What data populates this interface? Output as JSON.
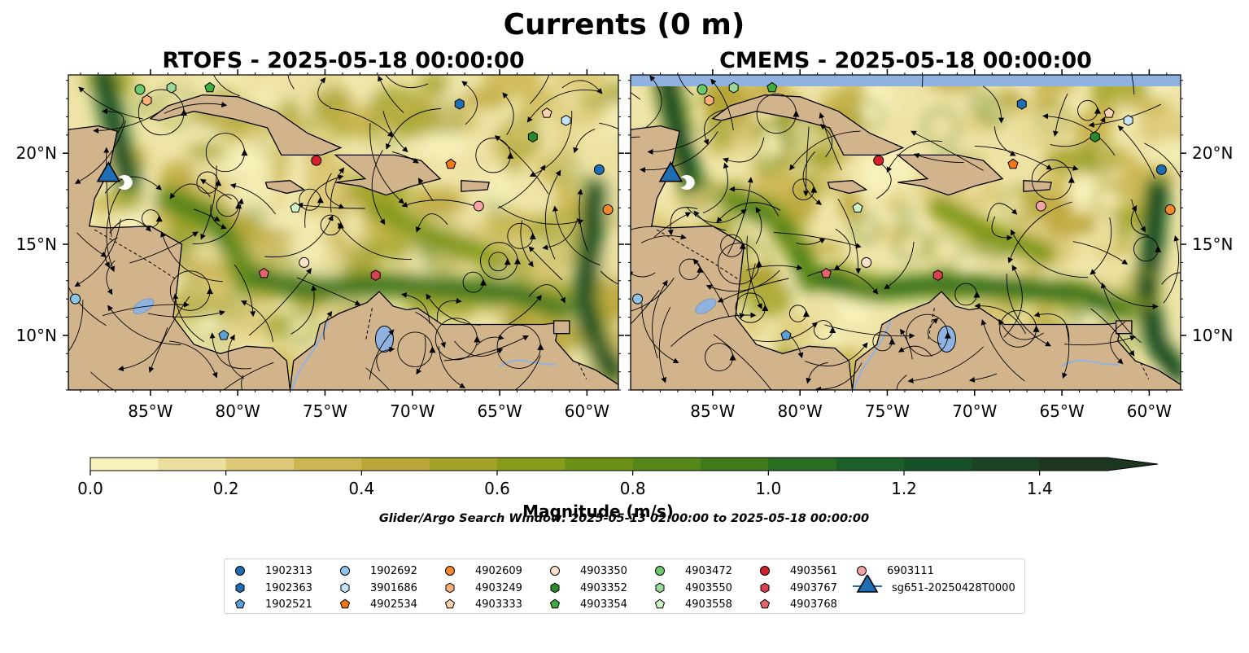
{
  "figure": {
    "suptitle": "Currents (0 m)",
    "left_panel_title": "RTOFS - 2025-05-18 00:00:00",
    "right_panel_title": "CMEMS - 2025-05-18 00:00:00",
    "colorbar_label": "Magnitude (m/s)",
    "search_window": "Glider/Argo Search Window: 2025-05-13 02:00:00 to 2025-05-18 00:00:00",
    "land_color": "#d2b48c",
    "water_color": "#8fb2e0"
  },
  "chart_data": {
    "type": "heatmap",
    "variable": "current magnitude",
    "x_ticks": [
      "85°W",
      "80°W",
      "75°W",
      "70°W",
      "65°W",
      "60°W"
    ],
    "x_tick_values": [
      -85,
      -80,
      -75,
      -70,
      -65,
      -60
    ],
    "y_ticks": [
      "20°N",
      "15°N",
      "10°N"
    ],
    "y_tick_values": [
      20,
      15,
      10
    ],
    "xlim": [
      -89.7,
      -58.2
    ],
    "ylim": [
      7.0,
      24.3
    ],
    "colorbar": {
      "ticks": [
        "0.0",
        "0.2",
        "0.4",
        "0.6",
        "0.8",
        "1.0",
        "1.2",
        "1.4"
      ],
      "range": [
        0,
        1.5
      ],
      "extend": "max",
      "levels": [
        0,
        0.1,
        0.2,
        0.3,
        0.4,
        0.5,
        0.6,
        0.7,
        0.8,
        0.9,
        1.0,
        1.1,
        1.2,
        1.3,
        1.4,
        1.5
      ],
      "colors": [
        "#f8f2bc",
        "#ece0a0",
        "#ddc978",
        "#cbb652",
        "#bba63a",
        "#a2a328",
        "#879c1a",
        "#6c9116",
        "#558618",
        "#3f7a1c",
        "#2a6e22",
        "#1a6028",
        "#155228",
        "#1b4426",
        "#1d3620"
      ]
    },
    "markers": [
      {
        "name": "1902313",
        "shape": "circle",
        "color": "#1f6eb4",
        "lon": -59.3,
        "lat": 19.1
      },
      {
        "name": "1902363",
        "shape": "hexagon",
        "color": "#1f6eb4",
        "lon": -67.3,
        "lat": 22.7
      },
      {
        "name": "1902521",
        "shape": "pentagon",
        "color": "#5d9fd8",
        "lon": -80.8,
        "lat": 10.0
      },
      {
        "name": "1902692",
        "shape": "circle",
        "color": "#8fc4ea",
        "lon": -89.3,
        "lat": 12.0
      },
      {
        "name": "3901686",
        "shape": "hexagon",
        "color": "#c6e3f7",
        "lon": -61.2,
        "lat": 21.8
      },
      {
        "name": "4902534",
        "shape": "pentagon",
        "color": "#f07818",
        "lon": -67.8,
        "lat": 19.4
      },
      {
        "name": "4902609",
        "shape": "circle",
        "color": "#f6892e",
        "lon": -58.8,
        "lat": 16.9
      },
      {
        "name": "4903249",
        "shape": "hexagon",
        "color": "#f9b07a",
        "lon": -85.2,
        "lat": 22.9
      },
      {
        "name": "4903333",
        "shape": "pentagon",
        "color": "#fcd2ae",
        "lon": -62.3,
        "lat": 22.2
      },
      {
        "name": "4903350",
        "shape": "circle",
        "color": "#fde1cb",
        "lon": -76.2,
        "lat": 14.0
      },
      {
        "name": "4903352",
        "shape": "hexagon",
        "color": "#2a8a2a",
        "lon": -63.1,
        "lat": 20.9
      },
      {
        "name": "4903354",
        "shape": "pentagon",
        "color": "#3fae3f",
        "lon": -81.6,
        "lat": 23.6
      },
      {
        "name": "4903472",
        "shape": "circle",
        "color": "#6cc96c",
        "lon": -85.6,
        "lat": 23.5
      },
      {
        "name": "4903550",
        "shape": "hexagon",
        "color": "#9ad89a",
        "lon": -83.8,
        "lat": 23.6
      },
      {
        "name": "4903558",
        "shape": "pentagon",
        "color": "#cdf3c7",
        "lon": -76.7,
        "lat": 17.0
      },
      {
        "name": "4903561",
        "shape": "circle",
        "color": "#d4202a",
        "lon": -75.5,
        "lat": 19.6
      },
      {
        "name": "4903767",
        "shape": "hexagon",
        "color": "#d8424c",
        "lon": -72.1,
        "lat": 13.3
      },
      {
        "name": "4903768",
        "shape": "pentagon",
        "color": "#e5636b",
        "lon": -78.5,
        "lat": 13.4
      },
      {
        "name": "6903111",
        "shape": "circle",
        "color": "#f4a3a6",
        "lon": -66.2,
        "lat": 17.1
      },
      {
        "name": "sg651-20250428T0000",
        "shape": "triangle",
        "color": "#1f6eb4",
        "lon": -87.4,
        "lat": 18.8
      }
    ]
  }
}
